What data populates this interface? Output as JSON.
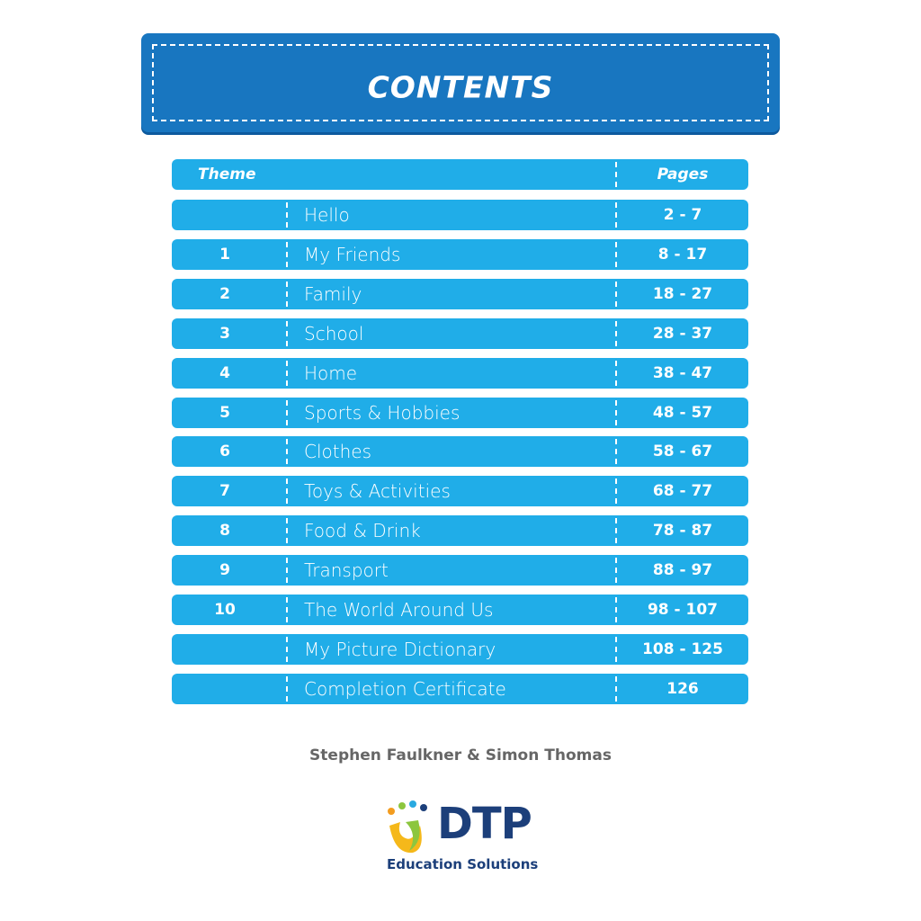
{
  "header": {
    "title": "CONTENTS"
  },
  "table": {
    "columns": [
      "Theme",
      "Pages"
    ],
    "rows": [
      {
        "title": "Hello",
        "pages": "2 - 7"
      },
      {
        "theme": 1,
        "title": "My Friends",
        "pages": "8 - 17"
      },
      {
        "theme": 2,
        "title": "Family",
        "pages": "18 - 27"
      },
      {
        "theme": 3,
        "title": "School",
        "pages": "28 - 37"
      },
      {
        "theme": 4,
        "title": "Home",
        "pages": "38 - 47"
      },
      {
        "theme": 5,
        "title": "Sports & Hobbies",
        "pages": "48 - 57"
      },
      {
        "theme": 6,
        "title": "Clothes",
        "pages": "58 - 67"
      },
      {
        "theme": 7,
        "title": "Toys & Activities",
        "pages": "68 - 77"
      },
      {
        "theme": 8,
        "title": "Food & Drink",
        "pages": "78 - 87"
      },
      {
        "theme": 9,
        "title": "Transport",
        "pages": "88 - 97"
      },
      {
        "theme": 10,
        "title": "The World Around Us",
        "pages": "98 - 107"
      },
      {
        "title": "My Picture Dictionary",
        "pages": "108 - 125"
      },
      {
        "title": "Completion Certificate",
        "pages": "126"
      }
    ]
  },
  "footer": {
    "authors": "Stephen Faulkner & Simon Thomas",
    "logo": "DTP",
    "logo_subtitle": "Education Solutions"
  }
}
